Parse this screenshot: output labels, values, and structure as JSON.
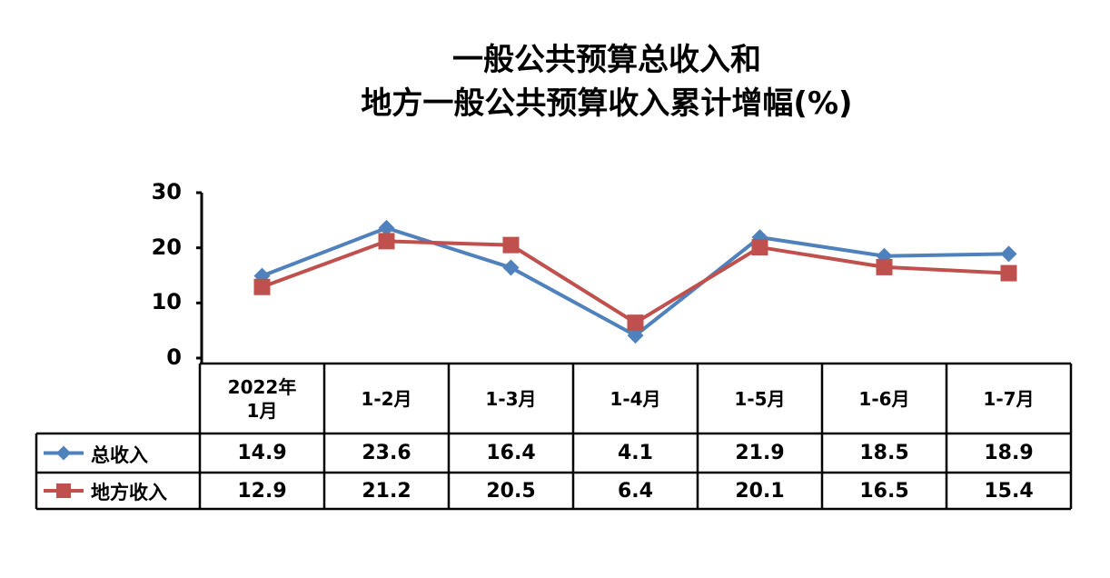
{
  "chart_data": {
    "type": "line",
    "title": [
      "一般公共预算总收入和",
      "地方一般公共预算收入累计增幅(%)"
    ],
    "categories": [
      "2022年1月",
      "1-2月",
      "1-3月",
      "1-4月",
      "1-5月",
      "1-6月",
      "1-7月"
    ],
    "series": [
      {
        "name": "总收入",
        "color": "#4f81bd",
        "marker": "diamond",
        "values": [
          14.9,
          23.6,
          16.4,
          4.1,
          21.9,
          18.5,
          18.9
        ]
      },
      {
        "name": "地方收入",
        "color": "#c0504d",
        "marker": "square",
        "values": [
          12.9,
          21.2,
          20.5,
          6.4,
          20.1,
          16.5,
          15.4
        ]
      }
    ],
    "ylim": [
      0,
      30
    ],
    "yticks": [
      0,
      10,
      20,
      30
    ],
    "grid": false,
    "data_table": true
  }
}
